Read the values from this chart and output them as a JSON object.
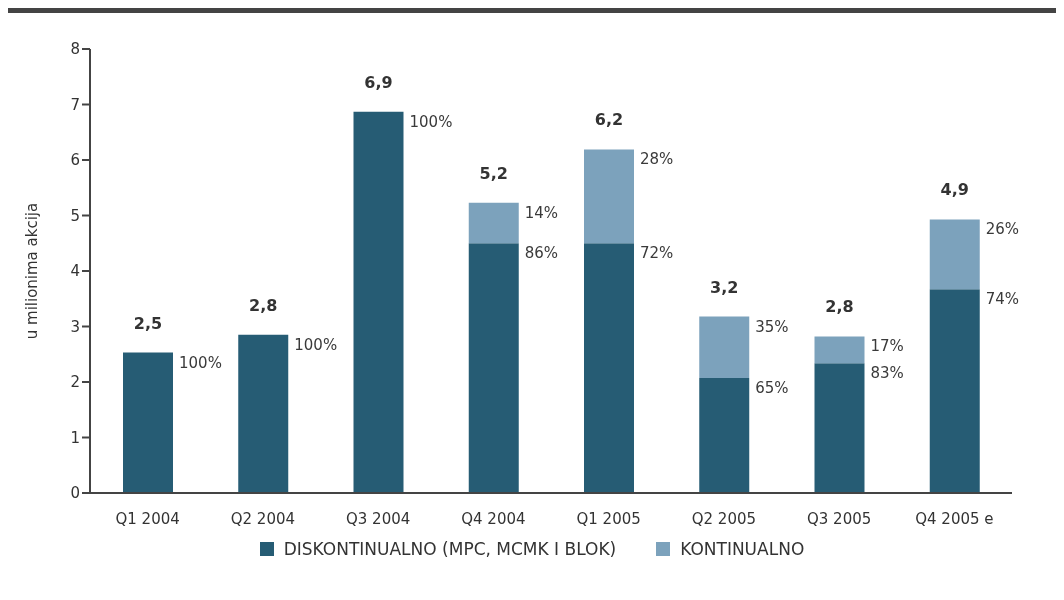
{
  "chart_data": {
    "type": "bar",
    "stacked": true,
    "ylabel": "u milionima akcija",
    "categories": [
      "Q1 2004",
      "Q2 2004",
      "Q3 2004",
      "Q4 2004",
      "Q1 2005",
      "Q2 2005",
      "Q3 2005",
      "Q4 2005 e"
    ],
    "ylim": [
      0,
      8
    ],
    "yticks": [
      0,
      1,
      2,
      3,
      4,
      5,
      6,
      7,
      8
    ],
    "grid": false,
    "legend": "bottom",
    "totals": [
      "2,5",
      "2,8",
      "6,9",
      "5,2",
      "6,2",
      "3,2",
      "2,8",
      "4,9"
    ],
    "series": [
      {
        "name": "DISKONTINUALNO (MPC, MCMK I BLOK)",
        "color": "#265c74",
        "values": [
          2.53,
          2.85,
          6.87,
          4.5,
          4.5,
          2.07,
          2.34,
          3.67
        ]
      },
      {
        "name": "KONTINUALNO",
        "color": "#7ca2bc",
        "values": [
          null,
          null,
          null,
          0.73,
          1.69,
          1.11,
          0.48,
          1.26
        ]
      }
    ],
    "annotations": [
      {
        "text": "100%",
        "x": "Q1 2004",
        "y": 2.53
      },
      {
        "text": "100%",
        "x": "Q2 2004",
        "y": 2.85
      },
      {
        "text": "100%",
        "x": "Q3 2004",
        "y": 6.87
      },
      {
        "text": "86%",
        "x": "Q4 2004",
        "y": 4.5
      },
      {
        "text": "14%",
        "x": "Q4 2004",
        "y": 5.23
      },
      {
        "text": "72%",
        "x": "Q1 2005",
        "y": 4.5
      },
      {
        "text": "28%",
        "x": "Q1 2005",
        "y": 6.19
      },
      {
        "text": "65%",
        "x": "Q2 2005",
        "y": 2.07
      },
      {
        "text": "35%",
        "x": "Q2 2005",
        "y": 3.18
      },
      {
        "text": "83%",
        "x": "Q3 2005",
        "y": 2.34
      },
      {
        "text": "17%",
        "x": "Q3 2005",
        "y": 2.82
      },
      {
        "text": "74%",
        "x": "Q4 2005 e",
        "y": 3.67
      },
      {
        "text": "26%",
        "x": "Q4 2005 e",
        "y": 4.93
      }
    ]
  }
}
